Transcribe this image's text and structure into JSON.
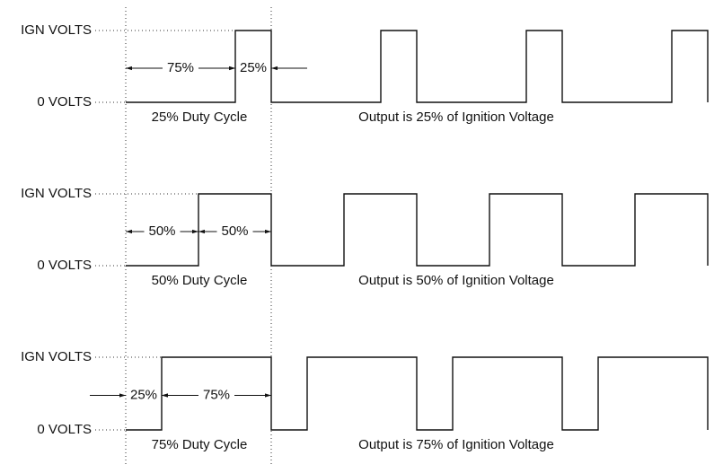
{
  "panels": [
    {
      "high_label": "IGN VOLTS",
      "low_label": "0 VOLTS",
      "off_label": "75%",
      "on_label": "25%",
      "duty_caption": "25% Duty Cycle",
      "output_caption": "Output is 25% of Ignition Voltage"
    },
    {
      "high_label": "IGN VOLTS",
      "low_label": "0 VOLTS",
      "off_label": "50%",
      "on_label": "50%",
      "duty_caption": "50% Duty Cycle",
      "output_caption": "Output is 50% of Ignition Voltage"
    },
    {
      "high_label": "IGN VOLTS",
      "low_label": "0 VOLTS",
      "off_label": "25%",
      "on_label": "75%",
      "duty_caption": "75% Duty Cycle",
      "output_caption": "Output is 75% of Ignition Voltage"
    }
  ]
}
